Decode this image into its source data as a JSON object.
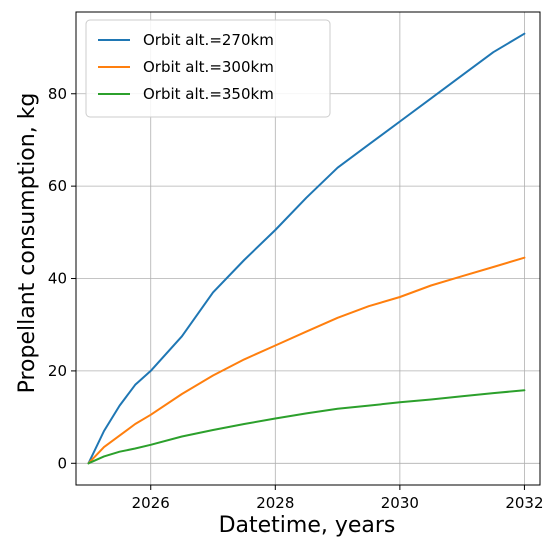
{
  "chart_data": {
    "type": "line",
    "title": "",
    "xlabel": "Datetime, years",
    "ylabel": "Propellant consumption, kg",
    "xlim": [
      2024.8,
      2032.25
    ],
    "ylim": [
      -4.7,
      97.7
    ],
    "xticks": [
      2026,
      2028,
      2030,
      2032
    ],
    "yticks": [
      0,
      20,
      40,
      60,
      80
    ],
    "grid": true,
    "legend_position": "top-left",
    "series": [
      {
        "name": "Orbit alt.=270km",
        "color": "#1f77b4",
        "x": [
          2025.0,
          2025.25,
          2025.5,
          2025.75,
          2026.0,
          2026.5,
          2027.0,
          2027.5,
          2028.0,
          2028.5,
          2029.0,
          2029.5,
          2030.0,
          2030.5,
          2031.0,
          2031.5,
          2032.0
        ],
        "y": [
          0,
          7,
          12.5,
          17,
          20,
          27.5,
          37,
          44,
          50.5,
          57.5,
          64,
          69,
          74,
          79,
          84,
          89,
          93
        ]
      },
      {
        "name": "Orbit alt.=300km",
        "color": "#ff7f0e",
        "x": [
          2025.0,
          2025.25,
          2025.5,
          2025.75,
          2026.0,
          2026.5,
          2027.0,
          2027.5,
          2028.0,
          2028.5,
          2029.0,
          2029.5,
          2030.0,
          2030.5,
          2031.0,
          2031.5,
          2032.0
        ],
        "y": [
          0,
          3.5,
          6,
          8.5,
          10.5,
          15,
          19,
          22.5,
          25.5,
          28.5,
          31.5,
          34,
          36,
          38.5,
          40.5,
          42.5,
          44.5
        ]
      },
      {
        "name": "Orbit alt.=350km",
        "color": "#2ca02c",
        "x": [
          2025.0,
          2025.25,
          2025.5,
          2025.75,
          2026.0,
          2026.5,
          2027.0,
          2027.5,
          2028.0,
          2028.5,
          2029.0,
          2029.5,
          2030.0,
          2030.5,
          2031.0,
          2031.5,
          2032.0
        ],
        "y": [
          0,
          1.5,
          2.5,
          3.2,
          4,
          5.8,
          7.2,
          8.5,
          9.7,
          10.8,
          11.8,
          12.5,
          13.2,
          13.8,
          14.5,
          15.2,
          15.8
        ]
      }
    ]
  }
}
